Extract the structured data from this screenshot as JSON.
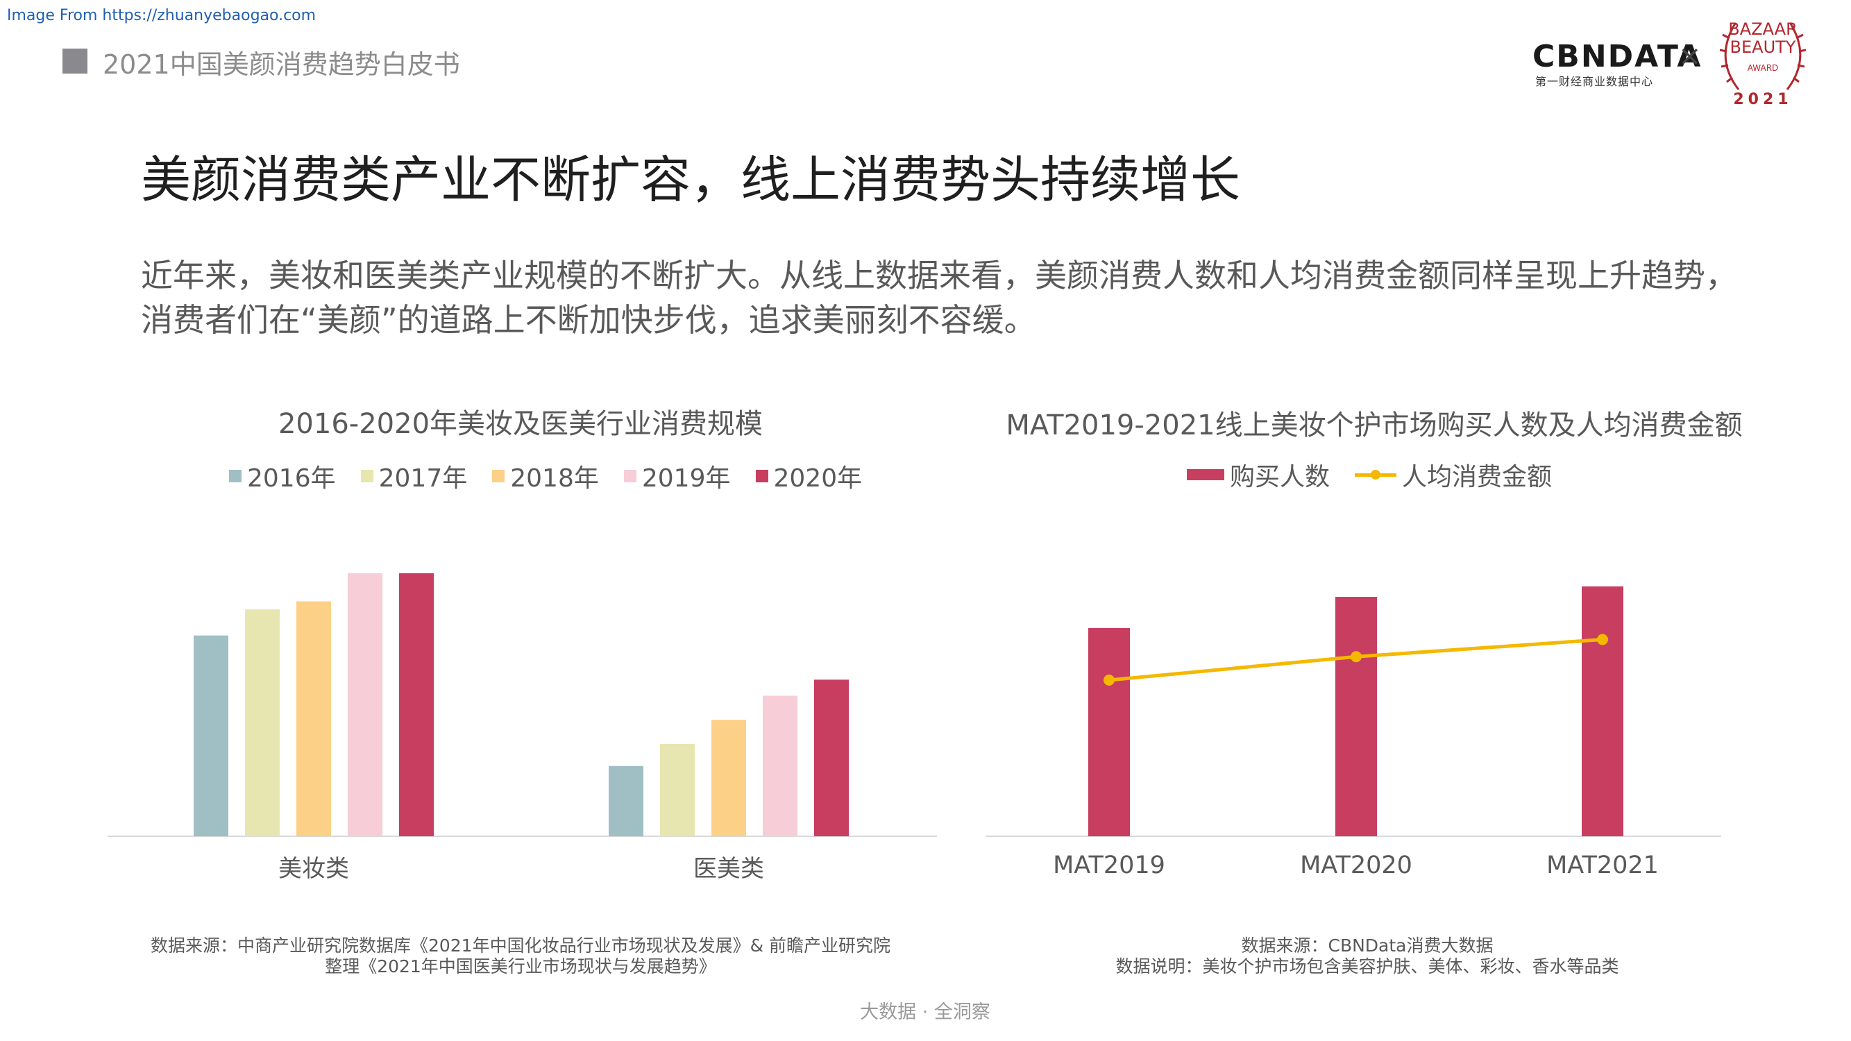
{
  "source_url": "Image From https://zhuanyebaogao.com",
  "header": {
    "title": "2021中国美颜消费趋势白皮书"
  },
  "logos": {
    "cbn": "CBNDATA",
    "cbn_sub": "第一财经商业数据中心",
    "times": "×",
    "bazaar_line1": "BAZAAR",
    "bazaar_line2": "BEAUTY",
    "bazaar_award": "AWARD",
    "bazaar_year": "2021"
  },
  "headline": "美颜消费类产业不断扩容，线上消费势头持续增长",
  "intro": {
    "line1": "近年来，美妆和医美类产业规模的不断扩大。从线上数据来看，美颜消费人数和人均消费金额同样呈现上升趋势，",
    "line2": "消费者们在“美颜”的道路上不断加快步伐，追求美丽刻不容缓。"
  },
  "chart_data": [
    {
      "type": "bar",
      "title": "2016-2020年美妆及医美行业消费规模",
      "categories": [
        "美妆类",
        "医美类"
      ],
      "series": [
        {
          "name": "2016年",
          "color": "#9fbfc4",
          "values": [
            100,
            35
          ]
        },
        {
          "name": "2017年",
          "color": "#e8e6b0",
          "values": [
            113,
            46
          ]
        },
        {
          "name": "2018年",
          "color": "#fdd087",
          "values": [
            117,
            58
          ]
        },
        {
          "name": "2019年",
          "color": "#f7cdd8",
          "values": [
            131,
            70
          ]
        },
        {
          "name": "2020年",
          "color": "#c83e61",
          "values": [
            131,
            78
          ]
        }
      ],
      "ylim": [
        0,
        140
      ],
      "grid": false,
      "legend": "top"
    },
    {
      "type": "bar",
      "title": "MAT2019-2021线上美妆个护市场购买人数及人均消费金额",
      "categories": [
        "MAT2019",
        "MAT2020",
        "MAT2021"
      ],
      "series": [
        {
          "name": "购买人数",
          "kind": "bar",
          "color": "#c83e61",
          "values": [
            100,
            115,
            120
          ]
        },
        {
          "name": "人均消费金额",
          "kind": "line",
          "color": "#f5b800",
          "values": [
            100,
            115,
            126
          ]
        }
      ],
      "ylim": [
        0,
        135
      ],
      "line_ylim": [
        0,
        180
      ],
      "grid": false,
      "legend": "top"
    }
  ],
  "footnotes": {
    "left_line1": "数据来源：中商产业研究院数据库《2021年中国化妆品行业市场现状及发展》& 前瞻产业研究院",
    "left_line2": "整理《2021年中国医美行业市场现状与发展趋势》",
    "right_line1": "数据来源：CBNData消费大数据",
    "right_line2": "数据说明：美妆个护市场包含美容护肤、美体、彩妆、香水等品类"
  },
  "footer": "大数据 · 全洞察"
}
